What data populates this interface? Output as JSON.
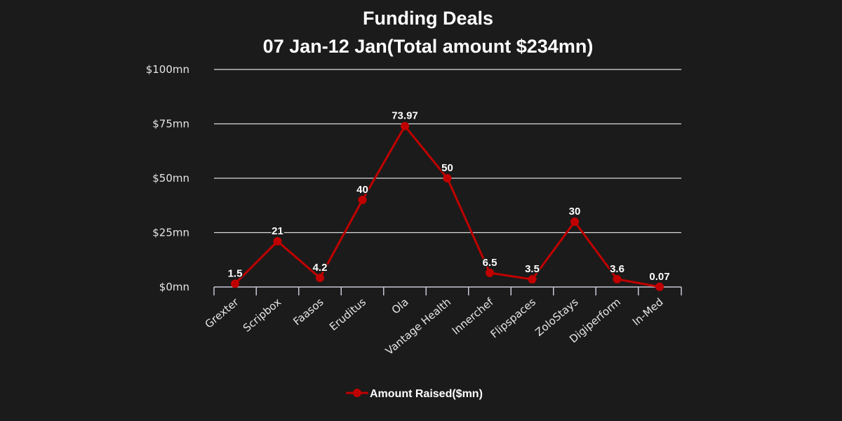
{
  "colors": {
    "background": "#1b1b1b",
    "series": "#c00000",
    "text": "#ffffff",
    "grid": "#d9d9d9"
  },
  "chart_data": {
    "type": "line",
    "title": "Funding Deals",
    "subtitle": "07 Jan-12 Jan(Total amount $234mn)",
    "categories": [
      "Grexter",
      "Scripbox",
      "Faasos",
      "Eruditus",
      "Ola",
      "Vantage Health",
      "Innerchef",
      "Flipspaces",
      "ZoloStays",
      "Digiperform",
      "In-Med"
    ],
    "series": [
      {
        "name": "Amount Raised($mn)",
        "values": [
          1.5,
          21,
          4.2,
          40,
          73.97,
          50,
          6.5,
          3.5,
          30,
          3.6,
          0.07
        ],
        "labels": [
          "1.5",
          "21",
          "4.2",
          "40",
          "73.97",
          "50",
          "6.5",
          "3.5",
          "30",
          "3.6",
          "0.07"
        ]
      }
    ],
    "ylim": [
      0,
      100
    ],
    "yticks": [
      0,
      25,
      50,
      75,
      100
    ],
    "ytick_labels": [
      "$0mn",
      "$25mn",
      "$50mn",
      "$75mn",
      "$100mn"
    ],
    "grid": true,
    "legend_position": "bottom"
  }
}
